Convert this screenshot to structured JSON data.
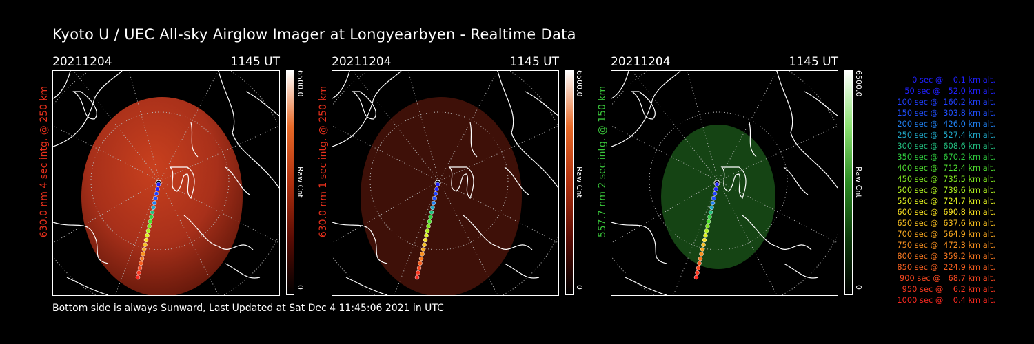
{
  "title": "Kyoto U / UEC All-sky Airglow Imager at Longyearbyen - Realtime Data",
  "footer": "Bottom side is always Sunward, Last Updated at Sat Dec  4 11:45:06 2021 in UTC",
  "panels": [
    {
      "date": "20211204",
      "time": "1145 UT",
      "ylabel": "630.0 nm 4 sec intg. @ 250 km",
      "label_color": "#e8301c",
      "cbar_max": "6500.0",
      "cbar_min": "0",
      "cbar_unit": "Raw Cnt"
    },
    {
      "date": "20211204",
      "time": "1145 UT",
      "ylabel": "630.0 nm 1 sec intg. @ 250 km",
      "label_color": "#e8301c",
      "cbar_max": "6500.0",
      "cbar_min": "0",
      "cbar_unit": "Raw Cnt"
    },
    {
      "date": "20211204",
      "time": "1145 UT",
      "ylabel": "557.7 nm 2 sec intg. @ 150 km",
      "label_color": "#39c43a",
      "cbar_max": "6500.0",
      "cbar_min": "0",
      "cbar_unit": "Raw Cnt"
    }
  ],
  "legend": [
    {
      "text": "   0 sec @    0.1 km alt.",
      "color": "#2020ff"
    },
    {
      "text": "  50 sec @   52.0 km alt.",
      "color": "#2020ff"
    },
    {
      "text": " 100 sec @  160.2 km alt.",
      "color": "#2040ff"
    },
    {
      "text": " 150 sec @  303.8 km alt.",
      "color": "#2050ff"
    },
    {
      "text": " 200 sec @  426.0 km alt.",
      "color": "#2080f0"
    },
    {
      "text": " 250 sec @  527.4 km alt.",
      "color": "#20a8c8"
    },
    {
      "text": " 300 sec @  608.6 km alt.",
      "color": "#22c080"
    },
    {
      "text": " 350 sec @  670.2 km alt.",
      "color": "#30d040"
    },
    {
      "text": " 400 sec @  712.4 km alt.",
      "color": "#50e030"
    },
    {
      "text": " 450 sec @  735.5 km alt.",
      "color": "#80e820"
    },
    {
      "text": " 500 sec @  739.6 km alt.",
      "color": "#b0f020"
    },
    {
      "text": " 550 sec @  724.7 km alt.",
      "color": "#e0f020"
    },
    {
      "text": " 600 sec @  690.8 km alt.",
      "color": "#f8e020"
    },
    {
      "text": " 650 sec @  637.6 km alt.",
      "color": "#f8c020"
    },
    {
      "text": " 700 sec @  564.9 km alt.",
      "color": "#f8a820"
    },
    {
      "text": " 750 sec @  472.3 km alt.",
      "color": "#f89020"
    },
    {
      "text": " 800 sec @  359.2 km alt.",
      "color": "#f87820"
    },
    {
      "text": " 850 sec @  224.9 km alt.",
      "color": "#f86020"
    },
    {
      "text": " 900 sec @   68.7 km alt.",
      "color": "#f84820"
    },
    {
      "text": " 950 sec @    6.2 km alt.",
      "color": "#f83820"
    },
    {
      "text": "1000 sec @    0.4 km alt.",
      "color": "#f82820"
    }
  ],
  "colors": {
    "red_glow": "#b8361c",
    "red_dim": "#4a1108",
    "green_glow": "#1a4a16"
  }
}
